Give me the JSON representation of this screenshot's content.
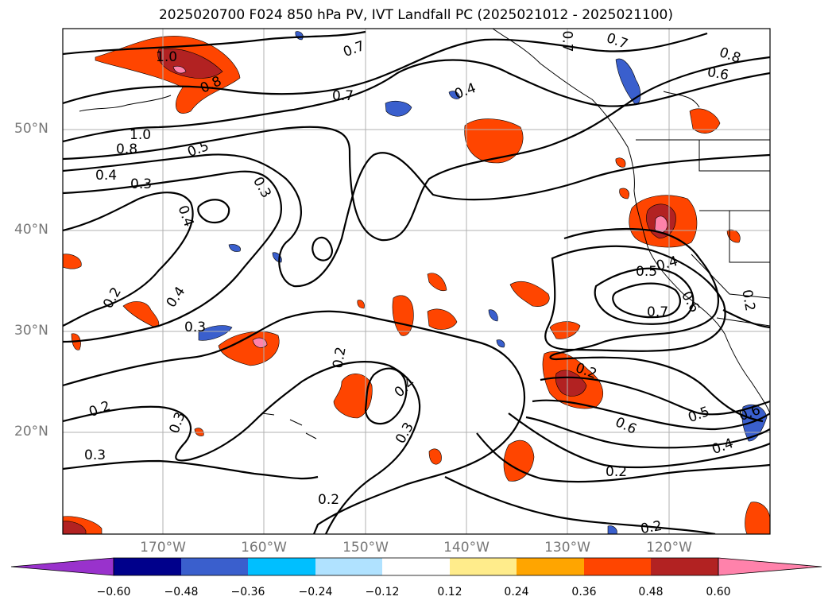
{
  "title": "2025020700 F024 850 hPa PV, IVT Landfall PC (2025021012 - 2025021100)",
  "map": {
    "lat_labels": [
      "50°N",
      "40°N",
      "30°N",
      "20°N"
    ],
    "lon_labels": [
      "170°W",
      "160°W",
      "150°W",
      "140°W",
      "130°W",
      "120°W"
    ],
    "contour_labels": [
      "1.0",
      "0.8",
      "0.7",
      "0.7",
      "0.4",
      "0.7",
      "0.8",
      "0.6",
      "0.7",
      "1.0",
      "0.8",
      "0.5",
      "0.4",
      "0.3",
      "0.3",
      "0.4",
      "0.4",
      "0.2",
      "0.3",
      "0.2",
      "0.2",
      "0.4",
      "0.2",
      "0.3",
      "0.3",
      "0.3",
      "0.5",
      "0.4",
      "0.6",
      "0.7",
      "0.2",
      "0.6",
      "0.5",
      "0.6",
      "0.4",
      "0.2",
      "0.2",
      "0.2"
    ]
  },
  "colorbar": {
    "colors": [
      "#9932cc",
      "#00008b",
      "#3a5fcd",
      "#00bfff",
      "#b0e2ff",
      "#ffffff",
      "#ffec8b",
      "#ffa500",
      "#ff4500",
      "#b22222",
      "#ff82ab"
    ],
    "ticks": [
      "−0.60",
      "−0.48",
      "−0.36",
      "−0.24",
      "−0.12",
      "0.12",
      "0.24",
      "0.36",
      "0.48",
      "0.60"
    ]
  }
}
